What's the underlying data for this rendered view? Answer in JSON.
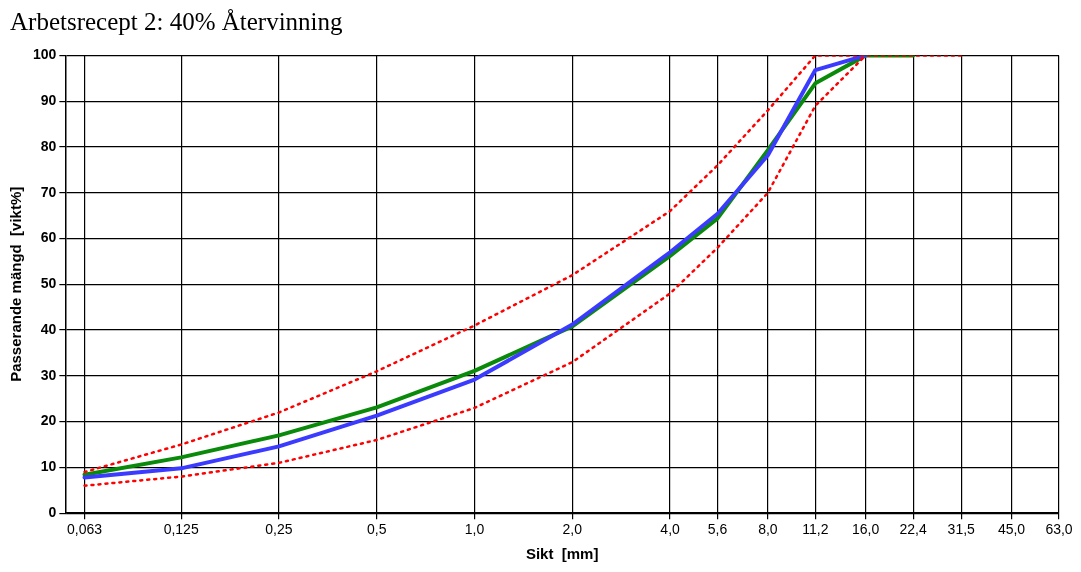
{
  "chart_data": {
    "type": "line",
    "title": "Arbetsrecept 2: 40% Återvinning",
    "xlabel": "Sikt  [mm]",
    "ylabel": "Passerande mängd  [vikt%]",
    "log": "x",
    "xlim": [
      0.055,
      63
    ],
    "xticks": [
      {
        "value": 0.063,
        "label": "0,063"
      },
      {
        "value": 0.125,
        "label": "0,125"
      },
      {
        "value": 0.25,
        "label": "0,25"
      },
      {
        "value": 0.5,
        "label": "0,5"
      },
      {
        "value": 1,
        "label": "1,0"
      },
      {
        "value": 2,
        "label": "2,0"
      },
      {
        "value": 4,
        "label": "4,0"
      },
      {
        "value": 5.6,
        "label": "5,6"
      },
      {
        "value": 8,
        "label": "8,0"
      },
      {
        "value": 11.2,
        "label": "11,2"
      },
      {
        "value": 16,
        "label": "16,0"
      },
      {
        "value": 22.4,
        "label": "22,4"
      },
      {
        "value": 31.5,
        "label": "31,5"
      },
      {
        "value": 45,
        "label": "45,0"
      },
      {
        "value": 63,
        "label": "63,0"
      }
    ],
    "ylim": [
      0,
      100
    ],
    "yticks": [
      0,
      10,
      20,
      30,
      40,
      50,
      60,
      70,
      80,
      90,
      100
    ],
    "grid": true,
    "legend": false,
    "marker": "none",
    "series": [
      {
        "color": "#ff0000",
        "line_style": "dotted",
        "x": [
          0.063,
          0.125,
          0.25,
          0.5,
          1,
          2,
          4,
          5.6,
          8,
          11.2,
          16,
          22.4,
          31.5
        ],
        "values": [
          9,
          15,
          22,
          31,
          41,
          52,
          66,
          76,
          88,
          100,
          100,
          100,
          100
        ]
      },
      {
        "color": "#ff0000",
        "line_style": "dotted",
        "x": [
          0.063,
          0.125,
          0.25,
          0.5,
          1,
          2,
          4,
          5.6,
          8,
          11.2,
          16
        ],
        "values": [
          6,
          8,
          11,
          16,
          23,
          33,
          48,
          58,
          70,
          89,
          100
        ]
      },
      {
        "color": "#3b3bff",
        "line_style": "solid",
        "x": [
          0.063,
          0.125,
          0.25,
          0.5,
          1,
          2,
          4,
          5.6,
          8,
          11.2,
          16
        ],
        "values": [
          7.8,
          9.8,
          14.6,
          21.3,
          29.2,
          41.2,
          57,
          65.4,
          78.2,
          96.8,
          100
        ]
      },
      {
        "color": "#0a8a0a",
        "line_style": "solid",
        "x": [
          0.063,
          0.125,
          0.25,
          0.5,
          1,
          2,
          4,
          5.6,
          8,
          11.2,
          16,
          22.4
        ],
        "values": [
          8.4,
          12.2,
          17,
          23.1,
          31.1,
          40.8,
          56.2,
          64.4,
          79.3,
          93.9,
          100,
          100
        ]
      }
    ]
  }
}
